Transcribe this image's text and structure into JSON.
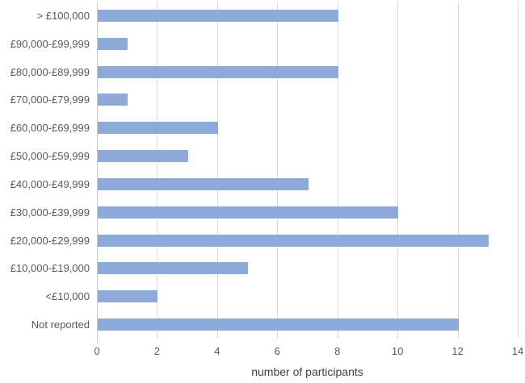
{
  "chart_data": {
    "type": "bar",
    "orientation": "horizontal",
    "title": "",
    "xlabel": "number of participants",
    "ylabel": "",
    "categories": [
      "> £100,000",
      "£90,000-£99,999",
      "£80,000-£89,999",
      "£70,000-£79,999",
      "£60,000-£69,999",
      "£50,000-£59,999",
      "£40,000-£49,999",
      "£30,000-£39,999",
      "£20,000-£29,999",
      "£10,000-£19,000",
      "<£10,000",
      "Not reported"
    ],
    "values": [
      8,
      1,
      8,
      1,
      4,
      3,
      7,
      10,
      13,
      5,
      2,
      12
    ],
    "xlim": [
      0,
      14
    ],
    "xticks": [
      0,
      2,
      4,
      6,
      8,
      10,
      12,
      14
    ],
    "grid": true,
    "legend": false,
    "colors": {
      "bar": "#8EAADB",
      "gridline": "#D9D9D9",
      "axis_line": "#C9C9C9",
      "tick_label": "#595959",
      "category_label": "#595959",
      "axis_title": "#404040"
    }
  }
}
